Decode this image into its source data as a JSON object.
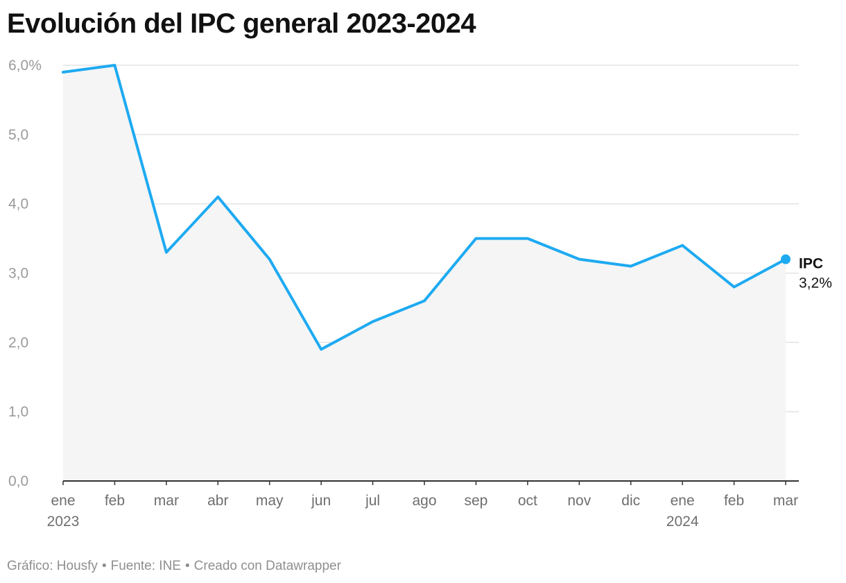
{
  "title": "Evolución del IPC general 2023-2024",
  "footer": {
    "chart_credit": "Gráfico: Housfy",
    "source": "Fuente: INE",
    "tool": "Creado con Datawrapper",
    "separator": "•"
  },
  "chart_data": {
    "type": "area",
    "title": "Evolución del IPC general 2023-2024",
    "categories": [
      "ene 2023",
      "feb",
      "mar",
      "abr",
      "may",
      "jun",
      "jul",
      "ago",
      "sep",
      "oct",
      "nov",
      "dic",
      "ene 2024",
      "feb",
      "mar"
    ],
    "x_tick_labels": [
      [
        "ene",
        "2023"
      ],
      [
        "feb"
      ],
      [
        "mar"
      ],
      [
        "abr"
      ],
      [
        "may"
      ],
      [
        "jun"
      ],
      [
        "jul"
      ],
      [
        "ago"
      ],
      [
        "sep"
      ],
      [
        "oct"
      ],
      [
        "nov"
      ],
      [
        "dic"
      ],
      [
        "ene",
        "2024"
      ],
      [
        "feb"
      ],
      [
        "mar"
      ]
    ],
    "series": [
      {
        "name": "IPC",
        "values": [
          5.9,
          6.0,
          3.3,
          4.1,
          3.2,
          1.9,
          2.3,
          2.6,
          3.5,
          3.5,
          3.2,
          3.1,
          3.4,
          2.8,
          3.2
        ]
      }
    ],
    "y_ticks": [
      0,
      1,
      2,
      3,
      4,
      5,
      6
    ],
    "y_tick_labels": [
      "0,0",
      "1,0",
      "2,0",
      "3,0",
      "4,0",
      "5,0",
      "6,0%"
    ],
    "ylim": [
      0,
      6
    ],
    "grid": true,
    "end_label": {
      "name": "IPC",
      "value": "3,2%"
    },
    "colors": {
      "line": "#1eaaf1",
      "area": "#f5f5f5",
      "grid": "#e3e3e3",
      "axis": "#333333"
    }
  }
}
